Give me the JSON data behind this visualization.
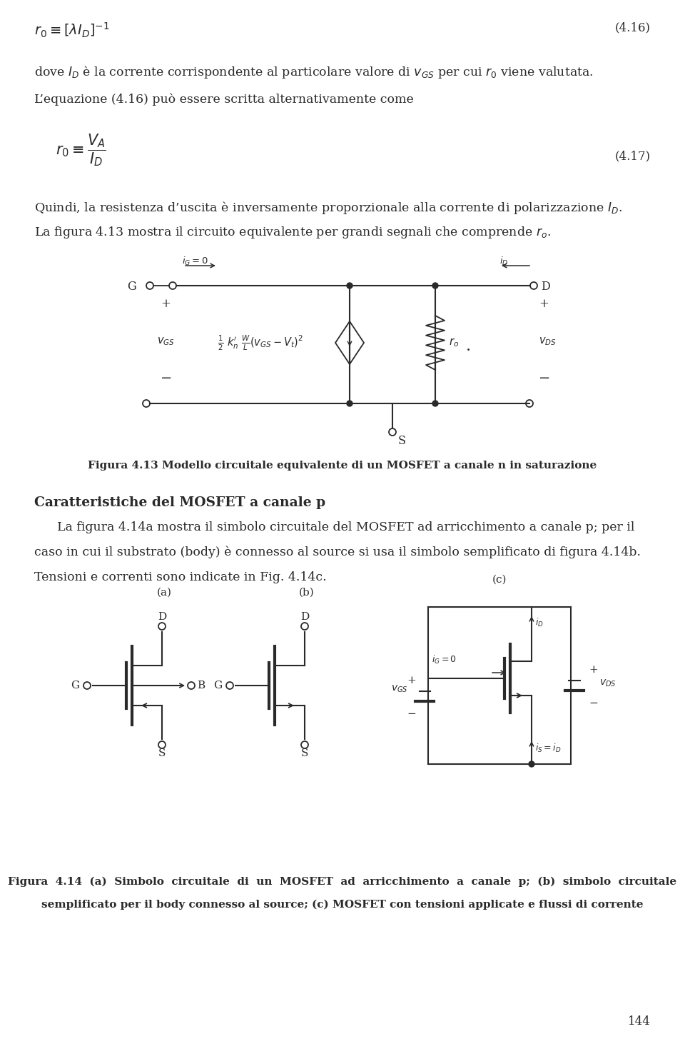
{
  "bg_color": "#ffffff",
  "text_color": "#2a2a2a",
  "page_number": "144",
  "fig413_caption": "Figura 4.13 Modello circuitale equivalente di un MOSFET a canale n in saturazione",
  "section_title": "Caratteristiche del MOSFET a canale p",
  "fig414_caption_line1": "Figura  4.14  (a)  Simbolo  circuitale  di  un  MOSFET  ad  arricchimento  a  canale  p;  (b)  simbolo  circuitale",
  "fig414_caption_line2": "semplificato per il body connesso al source; (c) MOSFET con tensioni applicate e flussi di corrente"
}
